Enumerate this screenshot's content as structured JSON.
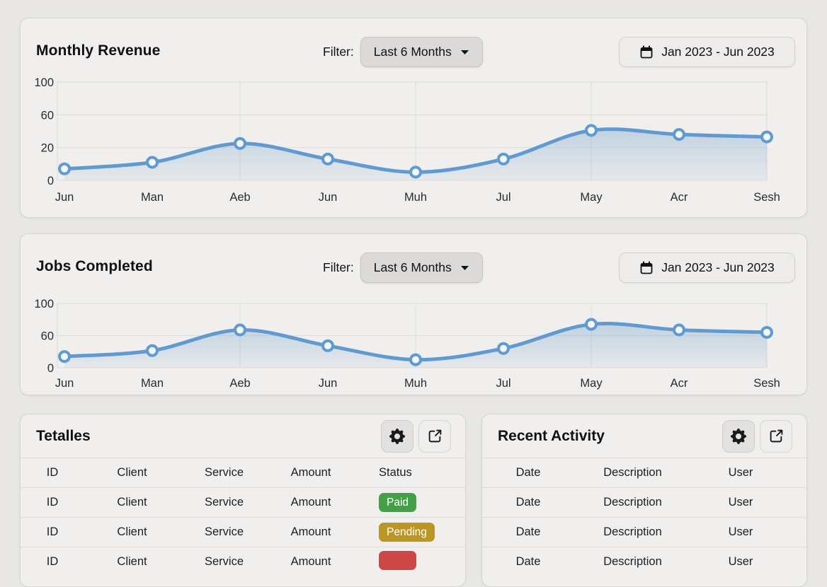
{
  "cards": {
    "revenue": {
      "title": "Monthly Revenue",
      "filter_label": "Filter:",
      "filter_value": "Last 6 Months",
      "date_range": "Jan 2023 - Jun 2023"
    },
    "jobs": {
      "title": "Jobs Completed",
      "filter_label": "Filter:",
      "filter_value": "Last 6 Months",
      "date_range": "Jan 2023 - Jun 2023"
    },
    "tetalles": {
      "title": "Tetalles"
    },
    "activity": {
      "title": "Recent Activity"
    }
  },
  "chart_data": [
    {
      "type": "line",
      "title": "Monthly Revenue",
      "categories": [
        "Jun",
        "Man",
        "Aeb",
        "Jun",
        "Muh",
        "Jul",
        "May",
        "Acr",
        "Sesh"
      ],
      "values": [
        7,
        11,
        25,
        13,
        5,
        13,
        41,
        36,
        33
      ],
      "yticks": [
        0,
        20,
        60,
        100
      ],
      "ylim": [
        0,
        100
      ],
      "xlabel": "",
      "ylabel": "",
      "grid": true,
      "vgrid": [
        "Aeb",
        "Muh",
        "May"
      ],
      "legend": "none"
    },
    {
      "type": "line",
      "title": "Jobs Completed",
      "categories": [
        "Jun",
        "Man",
        "Aeb",
        "Jun",
        "Muh",
        "Jul",
        "May",
        "Acr",
        "Sesh"
      ],
      "values": [
        21,
        32,
        67,
        41,
        15,
        36,
        74,
        67,
        64
      ],
      "yticks": [
        0,
        60,
        100
      ],
      "ylim": [
        0,
        100
      ],
      "xlabel": "",
      "ylabel": "",
      "grid": true,
      "vgrid": [
        "Aeb",
        "Muh",
        "May"
      ],
      "legend": "none"
    }
  ],
  "tables": {
    "tetalles": {
      "columns": [
        "ID",
        "Client",
        "Service",
        "Amount",
        "Status"
      ],
      "rows": [
        {
          "cells": [
            "ID",
            "Client",
            "Service",
            "Amount"
          ],
          "badge": {
            "label": "Paid",
            "color": "badge_paid"
          }
        },
        {
          "cells": [
            "ID",
            "Client",
            "Service",
            "Amount"
          ],
          "badge": {
            "label": "Pending",
            "color": "badge_pending"
          }
        },
        {
          "cells": [
            "ID",
            "Client",
            "Service",
            "Amount"
          ],
          "badge": {
            "label": "",
            "color": "badge_red"
          }
        }
      ]
    },
    "activity": {
      "columns": [
        "Date",
        "Description",
        "User"
      ],
      "rows": [
        {
          "cells": [
            "Date",
            "Description",
            "User"
          ]
        },
        {
          "cells": [
            "Date",
            "Description",
            "User"
          ]
        },
        {
          "cells": [
            "Date",
            "Description",
            "User"
          ]
        }
      ]
    }
  },
  "colors": {
    "chart_line": "#5f9bd1",
    "chart_fill": "#7ea7cf",
    "badge_paid": "#43a047",
    "badge_pending": "#bb9623",
    "badge_red": "#cd4747"
  }
}
